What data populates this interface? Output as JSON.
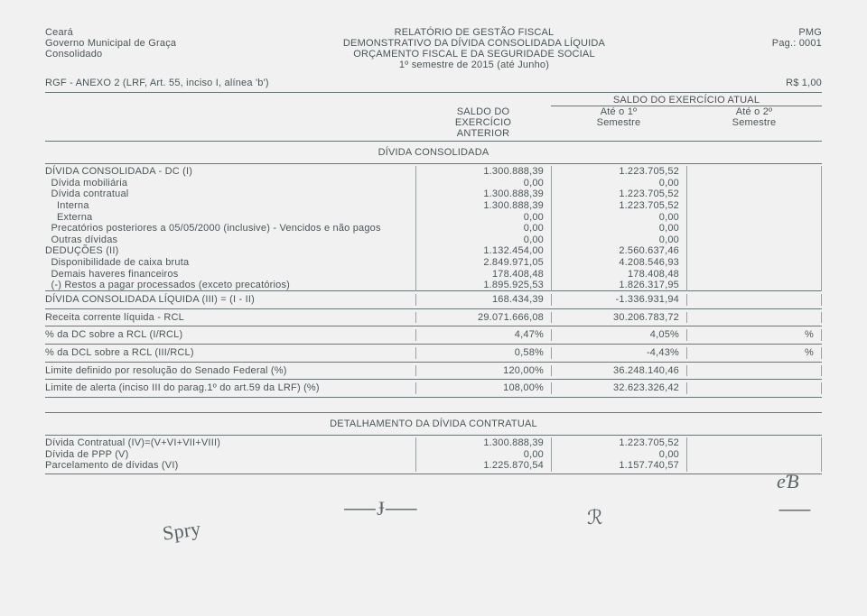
{
  "header": {
    "left_line1": "Ceará",
    "left_line2": "Governo Municipal de Graça",
    "left_line3": "Consolidado",
    "center_line1": "RELATÓRIO DE GESTÃO FISCAL",
    "center_line2": "DEMONSTRATIVO DA DÍVIDA CONSOLIDADA LÍQUIDA",
    "center_line3": "ORÇAMENTO FISCAL E DA SEGURIDADE SOCIAL",
    "center_line4": "1º semestre de 2015 (até Junho)",
    "right_line1": "PMG",
    "right_line2": "Pag.: 0001"
  },
  "subheader": {
    "left": "RGF - ANEXO 2 (LRF, Art. 55, inciso I, alínea 'b')",
    "right": "R$ 1,00"
  },
  "col_headers": {
    "saldo_anterior_1": "SALDO DO",
    "saldo_anterior_2": "EXERCÍCIO",
    "saldo_anterior_3": "ANTERIOR",
    "saldo_atual_title": "SALDO DO EXERCÍCIO ATUAL",
    "ate1_1": "Até o 1º",
    "ate1_2": "Semestre",
    "ate2_1": "Até o 2º",
    "ate2_2": "Semestre"
  },
  "section1_title": "DÍVIDA CONSOLIDADA",
  "rows1": [
    {
      "label": "DÍVIDA CONSOLIDADA - DC (I)",
      "v1": "1.300.888,39",
      "v2": "1.223.705,52",
      "v3": ""
    },
    {
      "label": "  Dívida mobiliária",
      "v1": "0,00",
      "v2": "0,00",
      "v3": ""
    },
    {
      "label": "  Dívida contratual",
      "v1": "1.300.888,39",
      "v2": "1.223.705,52",
      "v3": ""
    },
    {
      "label": "    Interna",
      "v1": "1.300.888,39",
      "v2": "1.223.705,52",
      "v3": ""
    },
    {
      "label": "    Externa",
      "v1": "0,00",
      "v2": "0,00",
      "v3": ""
    },
    {
      "label": "  Precatórios posteriores a 05/05/2000 (inclusive) - Vencidos e não pagos",
      "v1": "0,00",
      "v2": "0,00",
      "v3": ""
    },
    {
      "label": "  Outras dívidas",
      "v1": "0,00",
      "v2": "0,00",
      "v3": ""
    },
    {
      "label": "DEDUÇÕES (II)",
      "v1": "1.132.454,00",
      "v2": "2.560.637,46",
      "v3": ""
    },
    {
      "label": "  Disponibilidade de caixa bruta",
      "v1": "2.849.971,05",
      "v2": "4.208.546,93",
      "v3": ""
    },
    {
      "label": "  Demais haveres financeiros",
      "v1": "178.408,48",
      "v2": "178.408,48",
      "v3": ""
    },
    {
      "label": "  (-) Restos a pagar processados (exceto precatórios)",
      "v1": "1.895.925,53",
      "v2": "1.826.317,95",
      "v3": ""
    }
  ],
  "summary_rows": [
    {
      "label": "DÍVIDA CONSOLIDADA LÍQUIDA (III) = (I - II)",
      "v1": "168.434,39",
      "v2": "-1.336.931,94",
      "v3": ""
    },
    {
      "label": "Receita corrente líquida - RCL",
      "v1": "29.071.666,08",
      "v2": "30.206.783,72",
      "v3": ""
    },
    {
      "label": "% da DC sobre a RCL (I/RCL)",
      "v1": "4,47%",
      "v2": "4,05%",
      "v3": "%"
    },
    {
      "label": "% da DCL sobre a RCL (III/RCL)",
      "v1": "0,58%",
      "v2": "-4,43%",
      "v3": "%"
    },
    {
      "label": "Limite definido por resolução do Senado Federal (%)",
      "v1": "120,00%",
      "v2": "36.248.140,46",
      "v3": ""
    },
    {
      "label": "Limite de alerta (inciso III do parag.1º do art.59 da LRF) (%)",
      "v1": "108,00%",
      "v2": "32.623.326,42",
      "v3": ""
    }
  ],
  "section2_title": "DETALHAMENTO DA DÍVIDA CONTRATUAL",
  "rows2": [
    {
      "label": "Dívida Contratual (IV)=(V+VI+VII+VIII)",
      "v1": "1.300.888,39",
      "v2": "1.223.705,52",
      "v3": ""
    },
    {
      "label": "Dívida de PPP (V)",
      "v1": "0,00",
      "v2": "0,00",
      "v3": ""
    },
    {
      "label": "Parcelamento de dívidas (VI)",
      "v1": "1.225.870,54",
      "v2": "1.157.740,57",
      "v3": ""
    }
  ]
}
